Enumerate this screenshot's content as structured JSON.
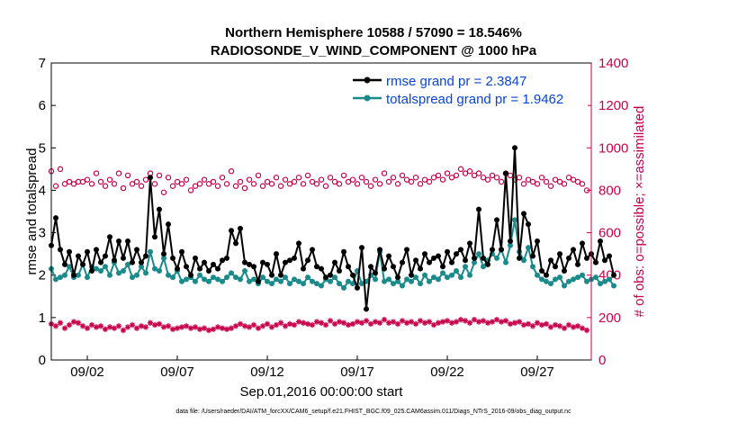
{
  "chart_data": {
    "type": "line",
    "title_line1": "Northern Hemisphere 10588 / 57090 = 18.546%",
    "title_line2": "RADIOSONDE_V_WIND_COMPONENT @ 1000 hPa",
    "xlabel": "Sep.01,2016 00:00:00 start",
    "ylabel": "rmse and totalspread",
    "ylabel_right": "# of obs: o=possible; ×=assimilated",
    "ylim": [
      0,
      7
    ],
    "ylim_right": [
      0,
      1400
    ],
    "x_range": [
      0,
      120
    ],
    "yticks": [
      "0",
      "1",
      "2",
      "3",
      "4",
      "5",
      "6",
      "7"
    ],
    "yticks_right": [
      "0",
      "200",
      "400",
      "600",
      "800",
      "1000",
      "1200",
      "1400"
    ],
    "xticks": [
      {
        "x": 8,
        "label": "09/02"
      },
      {
        "x": 28,
        "label": "09/07"
      },
      {
        "x": 48,
        "label": "09/12"
      },
      {
        "x": 68,
        "label": "09/17"
      },
      {
        "x": 88,
        "label": "09/22"
      },
      {
        "x": 108,
        "label": "09/27"
      }
    ],
    "series": [
      {
        "name": "rmse grand pr = 2.3847",
        "color": "#000000",
        "marker": "dot",
        "axis": "left",
        "values": [
          2.7,
          3.35,
          2.6,
          2.25,
          2.55,
          2.0,
          2.45,
          2.25,
          2.55,
          2.1,
          2.6,
          2.3,
          2.45,
          2.9,
          2.35,
          2.8,
          2.4,
          2.8,
          2.3,
          2.6,
          2.3,
          2.45,
          4.3,
          2.9,
          3.55,
          2.5,
          3.2,
          2.4,
          2.15,
          2.55,
          2.2,
          2.0,
          2.4,
          2.15,
          2.3,
          2.1,
          2.25,
          2.15,
          2.35,
          2.4,
          3.05,
          2.75,
          3.1,
          2.3,
          2.25,
          2.2,
          1.85,
          2.3,
          2.25,
          2.0,
          2.5,
          2.0,
          2.3,
          2.35,
          2.4,
          2.75,
          2.15,
          2.35,
          2.6,
          2.2,
          2.15,
          1.95,
          2.0,
          2.3,
          2.1,
          2.55,
          2.2,
          2.0,
          1.7,
          2.65,
          1.2,
          2.2,
          2.05,
          2.6,
          2.15,
          2.45,
          2.2,
          1.95,
          2.3,
          2.6,
          2.0,
          2.35,
          2.15,
          2.5,
          2.3,
          2.4,
          2.45,
          2.2,
          2.55,
          2.3,
          2.5,
          2.6,
          2.35,
          2.75,
          2.4,
          3.55,
          2.4,
          2.25,
          2.6,
          3.3,
          2.6,
          4.4,
          2.8,
          5.0,
          2.4,
          3.45,
          3.2,
          2.45,
          2.8,
          2.1,
          2.0,
          2.35,
          2.2,
          2.5,
          2.1,
          2.4,
          2.6,
          2.25,
          2.75,
          2.4,
          2.5,
          2.3,
          2.8,
          2.35,
          2.45,
          2.0
        ]
      },
      {
        "name": "totalspread grand pr = 1.9462",
        "color": "#1a8a8a",
        "marker": "dot",
        "axis": "left",
        "values": [
          2.15,
          1.9,
          1.95,
          2.0,
          2.2,
          1.95,
          2.0,
          2.25,
          1.95,
          2.2,
          2.15,
          2.1,
          2.2,
          2.0,
          2.3,
          2.05,
          2.1,
          2.25,
          1.95,
          2.0,
          2.2,
          2.05,
          2.55,
          2.15,
          2.1,
          2.4,
          2.0,
          1.95,
          2.1,
          1.85,
          1.9,
          1.95,
          1.85,
          2.0,
          1.9,
          1.85,
          1.95,
          1.9,
          1.85,
          1.95,
          2.05,
          1.95,
          1.9,
          2.1,
          1.85,
          1.9,
          1.8,
          1.95,
          1.85,
          1.8,
          1.9,
          1.85,
          1.95,
          1.8,
          1.9,
          1.85,
          1.8,
          1.95,
          1.85,
          1.8,
          1.75,
          1.9,
          1.85,
          1.95,
          1.8,
          1.7,
          1.85,
          1.8,
          2.1,
          1.8,
          1.85,
          2.0,
          1.9,
          2.55,
          1.85,
          1.9,
          1.8,
          1.85,
          1.75,
          1.9,
          1.85,
          1.95,
          1.8,
          2.0,
          1.85,
          1.95,
          1.9,
          2.05,
          1.95,
          2.0,
          2.1,
          1.95,
          2.2,
          2.0,
          2.3,
          2.5,
          2.2,
          2.35,
          2.5,
          2.4,
          2.6,
          2.3,
          2.7,
          3.3,
          2.55,
          2.35,
          2.65,
          2.2,
          2.0,
          1.9,
          1.85,
          1.8,
          1.9,
          1.95,
          1.75,
          1.85,
          1.9,
          1.95,
          2.0,
          1.85,
          1.9,
          1.95,
          1.8,
          1.85,
          1.9,
          1.75
        ]
      },
      {
        "name": "possible obs",
        "color": "#c8004a",
        "marker": "circle",
        "axis": "right",
        "values": [
          890,
          820,
          900,
          830,
          840,
          830,
          840,
          840,
          850,
          830,
          880,
          840,
          820,
          850,
          830,
          880,
          810,
          870,
          830,
          840,
          820,
          850,
          880,
          830,
          870,
          790,
          860,
          820,
          840,
          830,
          850,
          800,
          820,
          830,
          850,
          830,
          840,
          820,
          860,
          830,
          890,
          820,
          840,
          810,
          850,
          830,
          870,
          820,
          840,
          830,
          860,
          820,
          850,
          830,
          840,
          860,
          830,
          870,
          840,
          830,
          850,
          820,
          860,
          840,
          830,
          870,
          840,
          850,
          830,
          860,
          840,
          820,
          850,
          830,
          880,
          840,
          860,
          830,
          870,
          850,
          840,
          860,
          830,
          850,
          840,
          860,
          870,
          850,
          880,
          860,
          870,
          900,
          880,
          890,
          870,
          880,
          860,
          850,
          870,
          860,
          840,
          880,
          870,
          850,
          860,
          830,
          850,
          840,
          830,
          860,
          840,
          820,
          850,
          840,
          830,
          860,
          850,
          840,
          830,
          800
        ]
      },
      {
        "name": "assimilated obs",
        "color": "#c8004a",
        "marker": "star",
        "axis": "right",
        "values": [
          170,
          160,
          175,
          150,
          165,
          180,
          175,
          160,
          150,
          165,
          155,
          160,
          145,
          155,
          150,
          160,
          140,
          155,
          165,
          150,
          160,
          155,
          175,
          165,
          170,
          155,
          160,
          145,
          150,
          155,
          160,
          150,
          155,
          145,
          150,
          140,
          145,
          155,
          150,
          145,
          150,
          160,
          170,
          160,
          155,
          165,
          150,
          160,
          170,
          155,
          165,
          175,
          160,
          170,
          165,
          180,
          175,
          170,
          165,
          180,
          175,
          165,
          185,
          170,
          180,
          175,
          165,
          170,
          180,
          175,
          185,
          170,
          180,
          175,
          190,
          175,
          180,
          170,
          185,
          175,
          180,
          170,
          185,
          175,
          180,
          165,
          175,
          180,
          185,
          175,
          180,
          190,
          185,
          175,
          190,
          180,
          185,
          175,
          180,
          190,
          180,
          185,
          170,
          175,
          180,
          165,
          170,
          160,
          175,
          165,
          170,
          155,
          165,
          160,
          150,
          165,
          155,
          160,
          150,
          140
        ]
      }
    ]
  },
  "legend": {
    "entries": [
      "rmse grand pr = 2.3847",
      "totalspread grand pr = 1.9462"
    ]
  },
  "footer": "data file: /Users/raeder/DAI/ATM_forcXX/CAM6_setup/f.e21.FHIST_BGC.f09_025.CAM6assim.011/Diags_NTrS_2016-09/obs_diag_output.nc"
}
